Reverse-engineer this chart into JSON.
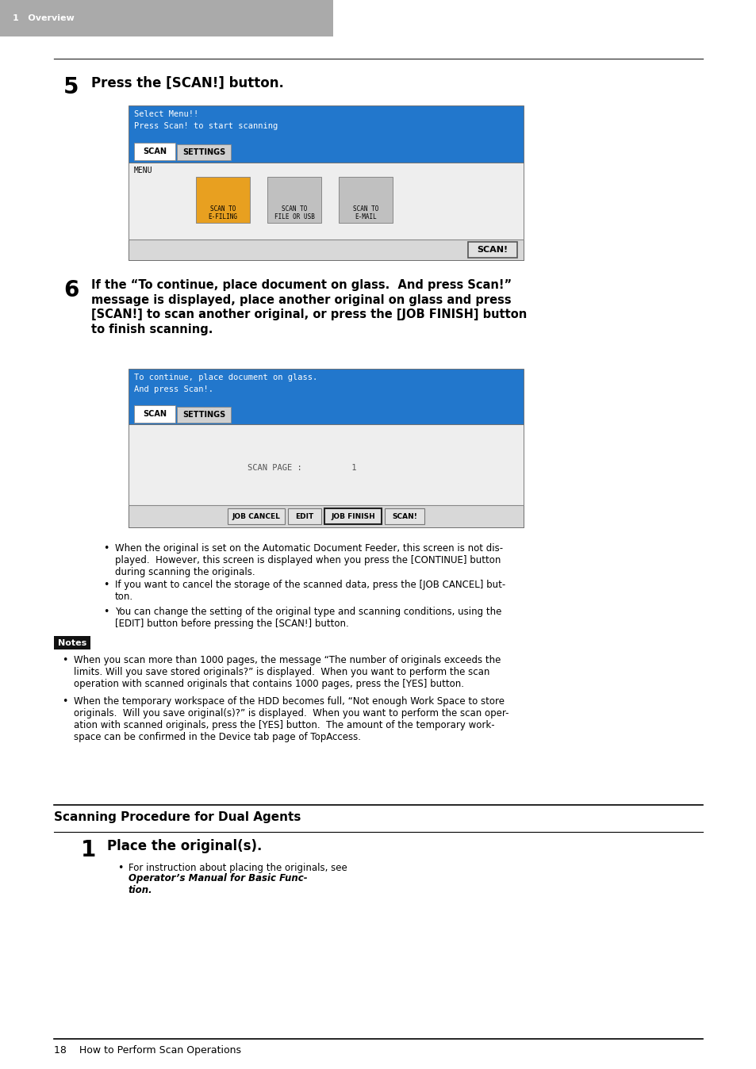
{
  "page_bg": "#ffffff",
  "header_bg": "#aaaaaa",
  "header_text": "1   Overview",
  "header_text_color": "#ffffff",
  "step5_number": "5",
  "step5_text": "Press the [SCAN!] button.",
  "screen1_bg": "#2277cc",
  "screen1_top_text1": "Select Menu!!",
  "screen1_top_text2": "Press Scan! to start scanning",
  "screen1_tab1": "SCAN",
  "screen1_tab2": "SETTINGS",
  "screen1_menu_label": "MENU",
  "screen1_btn_scan": "SCAN!",
  "step6_number": "6",
  "step6_line1": "If the “To continue, place document on glass.  And press Scan!”",
  "step6_line2": "message is displayed, place another original on glass and press",
  "step6_line3": "[SCAN!] to scan another original, or press the [JOB FINISH] button",
  "step6_line4": "to finish scanning.",
  "screen2_bg": "#2277cc",
  "screen2_top_text1": "To continue, place document on glass.",
  "screen2_top_text2": "And press Scan!.",
  "screen2_tab1": "SCAN",
  "screen2_tab2": "SETTINGS",
  "screen2_scan_page": "SCAN PAGE :          1",
  "screen2_btn1": "JOB CANCEL",
  "screen2_btn2": "EDIT",
  "screen2_btn3": "JOB FINISH",
  "screen2_btn4": "SCAN!",
  "bullet1": "When the original is set on the Automatic Document Feeder, this screen is not dis-\nplayed.  However, this screen is displayed when you press the [CONTINUE] button\nduring scanning the originals.",
  "bullet2": "If you want to cancel the storage of the scanned data, press the [JOB CANCEL] but-\nton.",
  "bullet3": "You can change the setting of the original type and scanning conditions, using the\n[EDIT] button before pressing the [SCAN!] button.",
  "notes_label": "Notes",
  "note1": "When you scan more than 1000 pages, the message “The number of originals exceeds the\nlimits. Will you save stored originals?” is displayed.  When you want to perform the scan\noperation with scanned originals that contains 1000 pages, press the [YES] button.",
  "note2": "When the temporary workspace of the HDD becomes full, “Not enough Work Space to store\noriginals.  Will you save original(s)?” is displayed.  When you want to perform the scan oper-\nation with scanned originals, press the [YES] button.  The amount of the temporary work-\nspace can be confirmed in the Device tab page of TopAccess.",
  "section_title": "Scanning Procedure for Dual Agents",
  "step1_number": "1",
  "step1_text": "Place the original(s).",
  "step1_bullet_plain": "For instruction about placing the originals, see ",
  "step1_bullet_bold": "Operator’s Manual for Basic Func-\ntion",
  "step1_bullet_end": ".",
  "footer_text": "18    How to Perform Scan Operations"
}
